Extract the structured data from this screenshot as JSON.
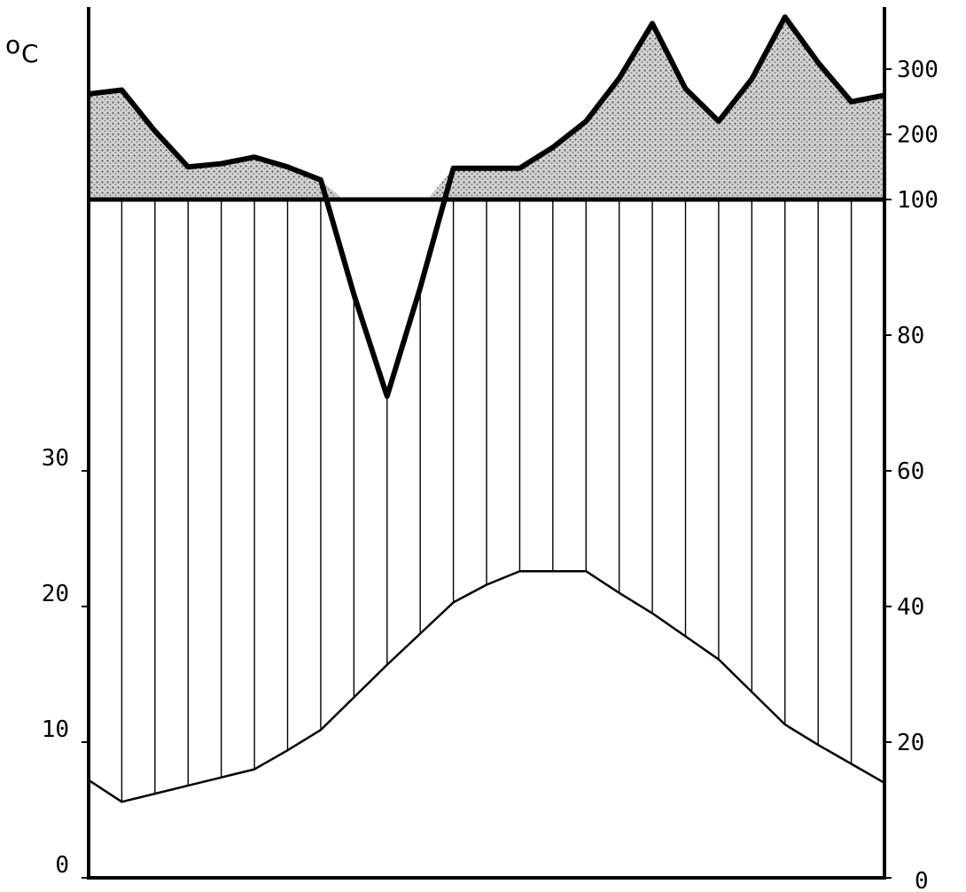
{
  "chart_data": {
    "type": "area",
    "title": "",
    "x": [
      1,
      2,
      3,
      4,
      5,
      6,
      7,
      8,
      9,
      10,
      11,
      12,
      13,
      14,
      15,
      16,
      17,
      18,
      19,
      20,
      21,
      22,
      23,
      24,
      25
    ],
    "left_axis": {
      "unit_prefix": "o",
      "unit_letter": "C",
      "ticks": [
        "0",
        "10",
        "20",
        "30"
      ],
      "ylim": [
        0,
        50
      ]
    },
    "right_axis": {
      "ticks": [
        "0",
        "20",
        "40",
        "60",
        "80",
        "100",
        "200",
        "300"
      ],
      "scale": "piecewise: linear 0-100 below, compressed 100-300 above"
    },
    "series": [
      {
        "axis": "left",
        "values": [
          7.2,
          5.6,
          6.2,
          6.8,
          7.4,
          8.0,
          9.4,
          10.9,
          13.3,
          15.7,
          18.0,
          20.3,
          21.6,
          22.6,
          22.6,
          22.6,
          21.0,
          19.5,
          17.8,
          16.1,
          13.7,
          11.3,
          9.8,
          8.4,
          7.0
        ]
      },
      {
        "axis": "right",
        "values": [
          262,
          268,
          205,
          150,
          155,
          165,
          150,
          130,
          86,
          71,
          87,
          148,
          148,
          148,
          180,
          220,
          286,
          370,
          270,
          220,
          285,
          380,
          310,
          250,
          260
        ]
      }
    ],
    "hatching": "vertical lines between the two curves",
    "upper_fill": "stippled area above 100 on right axis"
  }
}
